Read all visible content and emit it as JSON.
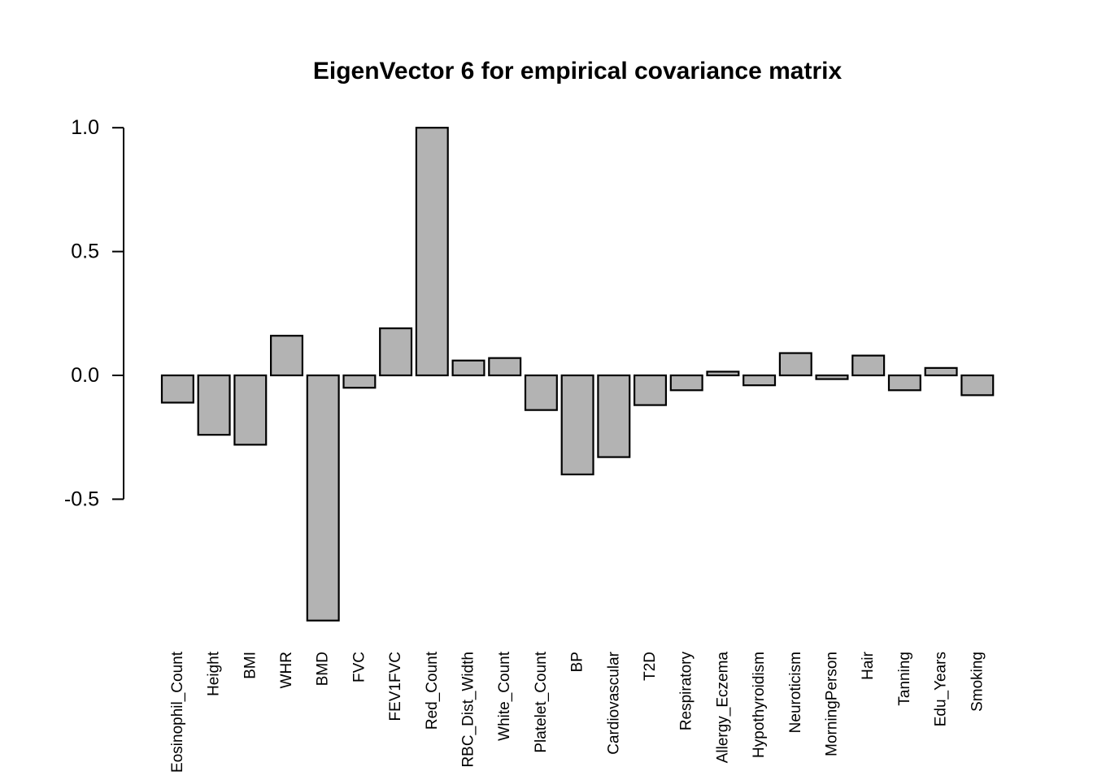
{
  "chart_data": {
    "type": "bar",
    "title": "EigenVector 6 for empirical covariance matrix",
    "xlabel": "",
    "ylabel": "",
    "categories": [
      "Eosinophil_Count",
      "Height",
      "BMI",
      "WHR",
      "BMD",
      "FVC",
      "FEV1FVC",
      "Red_Count",
      "RBC_Dist_Width",
      "White_Count",
      "Platelet_Count",
      "BP",
      "Cardiovascular",
      "T2D",
      "Respiratory",
      "Allergy_Eczema",
      "Hypothyroidism",
      "Neuroticism",
      "MorningPerson",
      "Hair",
      "Tanning",
      "Edu_Years",
      "Smoking"
    ],
    "values": [
      -0.11,
      -0.24,
      -0.28,
      0.16,
      -0.99,
      -0.05,
      0.19,
      1.0,
      0.06,
      0.07,
      -0.14,
      -0.4,
      -0.33,
      -0.12,
      -0.06,
      0.015,
      -0.04,
      0.09,
      -0.015,
      0.08,
      -0.06,
      0.03,
      -0.08
    ],
    "yticks": [
      1.0,
      0.5,
      0.0,
      -0.5
    ],
    "ytick_labels": [
      "1.0",
      "0.5",
      "0.0",
      "-0.5"
    ],
    "ylim": [
      -1.0,
      1.0
    ],
    "grid": false,
    "legend": "none",
    "bar_fill_color": "#b3b3b3",
    "bar_stroke_color": "#000000",
    "axis_color": "#000000",
    "background_color": "#ffffff"
  }
}
